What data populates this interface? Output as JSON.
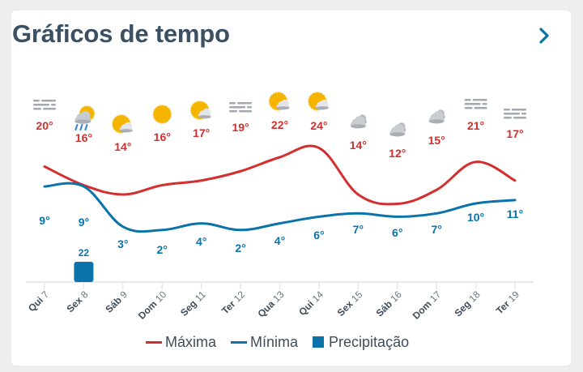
{
  "header": {
    "title": "Gráficos de tempo",
    "next_icon": "chevron-right-icon"
  },
  "colors": {
    "max": "#d32f2f",
    "min": "#0a73aa",
    "precip": "#0a73aa",
    "title": "#3b5062",
    "axis": "#e6e8ea"
  },
  "legend": {
    "max_label": "Máxima",
    "min_label": "Mínima",
    "precip_label": "Precipitação"
  },
  "chart_data": {
    "type": "line",
    "title": "Gráficos de tempo",
    "categories": [
      "Qui 7",
      "Sex 8",
      "Sáb 9",
      "Dom 10",
      "Seg 11",
      "Ter 12",
      "Qua 13",
      "Qui 14",
      "Sex 15",
      "Sáb 16",
      "Dom 17",
      "Seg 18",
      "Ter 19"
    ],
    "series": [
      {
        "name": "Máxima",
        "unit": "°",
        "values": [
          20,
          16,
          14,
          16,
          17,
          19,
          22,
          24,
          14,
          12,
          15,
          21,
          17
        ]
      },
      {
        "name": "Mínima",
        "unit": "°",
        "values": [
          9,
          9,
          3,
          2,
          4,
          2,
          4,
          6,
          7,
          6,
          7,
          10,
          11
        ]
      },
      {
        "name": "Precipitação",
        "type": "bar",
        "values": [
          0,
          22,
          0,
          0,
          0,
          0,
          0,
          0,
          0,
          0,
          0,
          0,
          0
        ]
      }
    ],
    "weather_icons": [
      "fog",
      "rain-sun-cloud",
      "partly-cloudy",
      "sunny",
      "partly-cloudy",
      "fog",
      "partly-cloudy",
      "partly-cloudy",
      "cloudy",
      "cloudy",
      "cloudy",
      "fog",
      "fog"
    ],
    "xlabel": "",
    "ylabel": "",
    "grid": false,
    "legend_position": "bottom"
  }
}
